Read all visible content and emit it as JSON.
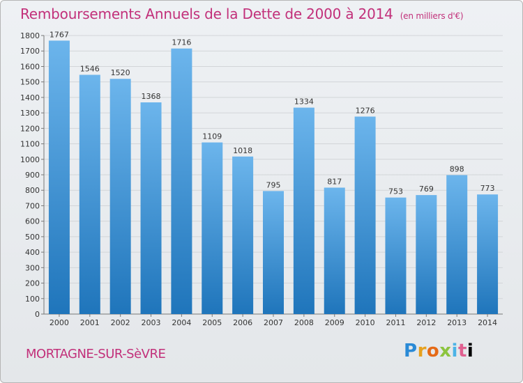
{
  "header": {
    "title": "Remboursements Annuels de la Dette de 2000 à 2014",
    "unit": "(en milliers d'€)"
  },
  "footer": {
    "commune": "MORTAGNE-SUR-SèVRE",
    "logo": [
      "P",
      "r",
      "o",
      "x",
      "i",
      "t",
      "i"
    ]
  },
  "colors": {
    "bar_light": "#6cb5ec",
    "bar_dark": "#1f75bb",
    "title": "#c2307a",
    "grid": "#d2d5d8"
  },
  "chart_data": {
    "type": "bar",
    "title": "Remboursements Annuels de la Dette de 2000 à 2014",
    "xlabel": "",
    "ylabel": "",
    "categories": [
      "2000",
      "2001",
      "2002",
      "2003",
      "2004",
      "2005",
      "2006",
      "2007",
      "2008",
      "2009",
      "2010",
      "2011",
      "2012",
      "2013",
      "2014"
    ],
    "values": [
      1767,
      1546,
      1520,
      1368,
      1716,
      1109,
      1018,
      795,
      1334,
      817,
      1276,
      753,
      769,
      898,
      773
    ],
    "ylim": [
      0,
      1800
    ],
    "ytick_step": 100,
    "grid": true,
    "legend": "none"
  }
}
